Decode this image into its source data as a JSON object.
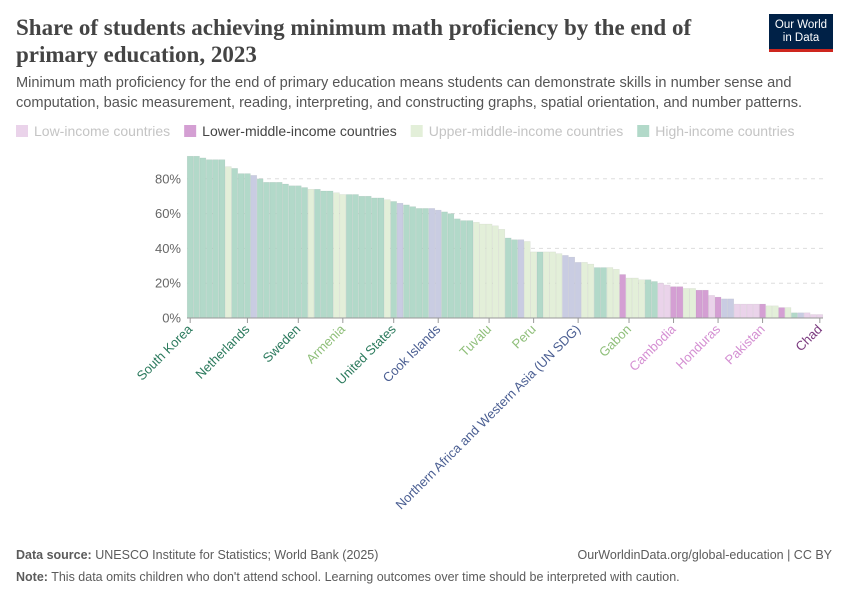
{
  "title": "Share of students achieving minimum math proficiency by the end of primary education, 2023",
  "subtitle": "Minimum math proficiency for the end of primary education means students can demonstrate skills in number sense and computation, basic measurement, reading, interpreting, and constructing graphs, spatial orientation, and number patterns.",
  "logo": "Our World in Data",
  "footer": {
    "source_label": "Data source:",
    "source": "UNESCO Institute for Statistics; World Bank (2025)",
    "url": "OurWorldinData.org/global-education | CC BY",
    "note_label": "Note:",
    "note": "This data omits children who don't attend school. Learning outcomes over time should be interpreted with caution."
  },
  "chart_data": {
    "type": "bar",
    "ylim": [
      0,
      100
    ],
    "yticks": [
      {
        "value": 0,
        "label": "0%"
      },
      {
        "value": 20,
        "label": "20%"
      },
      {
        "value": 40,
        "label": "40%"
      },
      {
        "value": 60,
        "label": "60%"
      },
      {
        "value": 80,
        "label": "80%"
      }
    ],
    "grid": true,
    "highlighted_series": 1,
    "categories": [
      "South Korea",
      null,
      null,
      null,
      null,
      null,
      null,
      null,
      null,
      "Netherlands",
      null,
      null,
      null,
      null,
      null,
      null,
      null,
      "Sweden",
      null,
      null,
      null,
      null,
      null,
      null,
      "Armenia",
      null,
      null,
      null,
      null,
      null,
      null,
      null,
      "United States",
      null,
      null,
      null,
      null,
      null,
      null,
      "Cook Islands",
      null,
      null,
      null,
      null,
      null,
      null,
      null,
      "Tuvalu",
      null,
      null,
      null,
      null,
      null,
      null,
      "Peru",
      null,
      null,
      null,
      null,
      null,
      null,
      "Northern Africa and Western Asia (UN SDG)",
      null,
      null,
      null,
      null,
      null,
      null,
      null,
      "Gabon",
      null,
      null,
      null,
      null,
      null,
      null,
      "Cambodia",
      null,
      null,
      null,
      null,
      null,
      null,
      "Honduras",
      null,
      null,
      null,
      null,
      null,
      null,
      "Pakistan",
      null,
      null,
      null,
      null,
      null,
      null,
      null,
      null,
      "Chad"
    ],
    "series": [
      {
        "name": "Low-income countries",
        "color": "#ead3ea",
        "label_color": "#7b3a7f",
        "values": [
          null,
          null,
          null,
          null,
          null,
          null,
          null,
          null,
          null,
          null,
          null,
          null,
          null,
          null,
          null,
          null,
          null,
          null,
          null,
          null,
          null,
          null,
          null,
          null,
          null,
          null,
          null,
          null,
          null,
          null,
          null,
          null,
          null,
          null,
          null,
          null,
          null,
          null,
          null,
          null,
          null,
          null,
          null,
          null,
          null,
          null,
          null,
          null,
          null,
          null,
          null,
          null,
          null,
          null,
          null,
          null,
          null,
          null,
          null,
          null,
          null,
          null,
          null,
          null,
          null,
          null,
          null,
          null,
          null,
          null,
          null,
          null,
          null,
          null,
          20,
          19,
          null,
          null,
          null,
          null,
          null,
          null,
          13,
          null,
          null,
          null,
          8,
          8,
          8,
          8,
          null,
          null,
          null,
          null,
          null,
          null,
          null,
          3,
          2,
          2
        ]
      },
      {
        "name": "Lower-middle-income countries",
        "color": "#d49fd3",
        "label_color": "#d48fd2",
        "values": [
          null,
          null,
          null,
          null,
          null,
          null,
          null,
          null,
          null,
          null,
          null,
          null,
          null,
          null,
          null,
          null,
          null,
          null,
          null,
          null,
          null,
          null,
          null,
          null,
          null,
          null,
          null,
          null,
          null,
          null,
          null,
          null,
          null,
          null,
          null,
          null,
          null,
          null,
          null,
          null,
          null,
          null,
          null,
          null,
          null,
          null,
          null,
          null,
          null,
          null,
          null,
          null,
          null,
          null,
          null,
          null,
          null,
          null,
          null,
          null,
          null,
          null,
          null,
          null,
          null,
          null,
          null,
          null,
          25,
          null,
          null,
          null,
          null,
          null,
          null,
          null,
          18,
          18,
          null,
          null,
          16,
          16,
          null,
          12,
          null,
          null,
          null,
          null,
          null,
          null,
          8,
          null,
          null,
          6,
          null,
          null,
          null,
          null,
          null,
          null
        ]
      },
      {
        "name": "Upper-middle-income countries",
        "color": "#e3efd9",
        "label_color": "#8fbf7a",
        "values": [
          null,
          null,
          null,
          null,
          null,
          null,
          87,
          null,
          null,
          null,
          null,
          null,
          null,
          null,
          null,
          null,
          null,
          null,
          null,
          74,
          null,
          null,
          null,
          72,
          71,
          null,
          null,
          null,
          null,
          null,
          null,
          68,
          null,
          null,
          null,
          null,
          null,
          null,
          null,
          null,
          null,
          null,
          null,
          null,
          null,
          55,
          54,
          54,
          53,
          51,
          null,
          null,
          null,
          44,
          38,
          null,
          38,
          38,
          37,
          null,
          null,
          null,
          32,
          31,
          null,
          null,
          29,
          28,
          null,
          23,
          23,
          22,
          null,
          null,
          null,
          null,
          null,
          null,
          17,
          17,
          null,
          null,
          null,
          null,
          null,
          null,
          null,
          null,
          null,
          null,
          null,
          7,
          7,
          null,
          6,
          null,
          null,
          null,
          null,
          null
        ]
      },
      {
        "name": "High-income countries",
        "color": "#b2d9c9",
        "label_color": "#2b7a5d",
        "values": [
          93,
          93,
          92,
          91,
          91,
          91,
          null,
          86,
          83,
          83,
          null,
          80,
          78,
          78,
          78,
          77,
          76,
          76,
          75,
          null,
          74,
          73,
          73,
          null,
          null,
          71,
          71,
          70,
          70,
          69,
          69,
          null,
          67,
          null,
          65,
          64,
          63,
          63,
          null,
          null,
          61,
          60,
          57,
          56,
          56,
          null,
          null,
          null,
          null,
          null,
          46,
          45,
          null,
          null,
          null,
          38,
          null,
          null,
          null,
          null,
          null,
          null,
          null,
          null,
          29,
          29,
          null,
          null,
          null,
          null,
          null,
          null,
          22,
          21,
          null,
          null,
          null,
          null,
          null,
          null,
          null,
          null,
          null,
          null,
          null,
          null,
          null,
          null,
          null,
          null,
          null,
          null,
          null,
          null,
          null,
          3,
          null,
          null,
          null,
          null
        ]
      },
      {
        "color": "#c9cce2",
        "label_color": "#4a5e92",
        "values": [
          null,
          null,
          null,
          null,
          null,
          null,
          null,
          null,
          null,
          null,
          82,
          null,
          null,
          null,
          null,
          null,
          null,
          null,
          null,
          null,
          null,
          null,
          null,
          null,
          null,
          null,
          null,
          null,
          null,
          null,
          null,
          null,
          null,
          66,
          null,
          null,
          null,
          null,
          63,
          62,
          null,
          null,
          null,
          null,
          null,
          null,
          null,
          null,
          null,
          null,
          null,
          null,
          45,
          null,
          null,
          null,
          null,
          null,
          null,
          36,
          35,
          32,
          null,
          null,
          null,
          null,
          null,
          null,
          null,
          null,
          null,
          null,
          null,
          null,
          null,
          null,
          null,
          null,
          null,
          null,
          null,
          null,
          null,
          null,
          11,
          11,
          null,
          null,
          null,
          null,
          null,
          null,
          null,
          null,
          null,
          null,
          3,
          null,
          null,
          null
        ]
      }
    ]
  }
}
